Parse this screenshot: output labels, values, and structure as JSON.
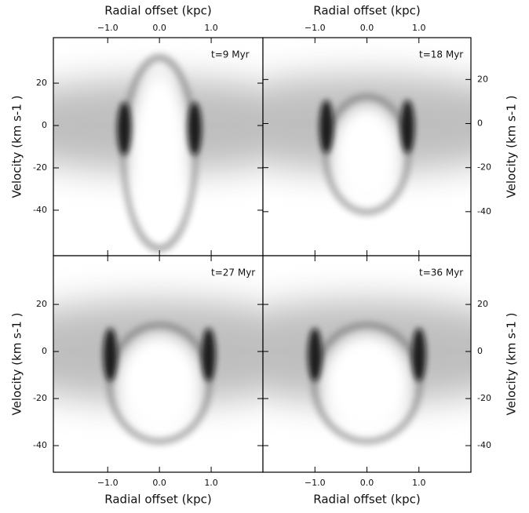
{
  "chart_data": [
    {
      "type": "image",
      "title": "t=9 Myr",
      "xlabel": "Radial offset (kpc)",
      "ylabel": "Velocity (km s-1 )",
      "xlim": [
        -2.05,
        2.0
      ],
      "ylim": [
        -61.5,
        41.5
      ],
      "xticks": [
        {
          "value": -1,
          "label": "−1.0"
        },
        {
          "value": 0,
          "label": "0.0"
        },
        {
          "value": 1,
          "label": "1.0"
        }
      ],
      "yticks": [
        20,
        0,
        -20,
        -40
      ],
      "xaxis_position": "top",
      "yaxis_position": "left"
    },
    {
      "type": "image",
      "title": "t=18 Myr",
      "xlabel": "Radial offset (kpc)",
      "ylabel": "Velocity (km s-1 )",
      "xlim": [
        -2.0,
        2.0
      ],
      "ylim": [
        -60,
        39
      ],
      "xticks": [
        {
          "value": -1,
          "label": "−1.0"
        },
        {
          "value": 0,
          "label": "0.0"
        },
        {
          "value": 1,
          "label": "1.0"
        }
      ],
      "yticks": [
        20,
        0,
        -20,
        -40
      ],
      "xaxis_position": "top",
      "yaxis_position": "right"
    },
    {
      "type": "image",
      "title": "t=27 Myr",
      "xlabel": "Radial offset (kpc)",
      "ylabel": "Velocity (km s-1 )",
      "xlim": [
        -2.05,
        2.0
      ],
      "ylim": [
        -51.3,
        40.7
      ],
      "xticks": [
        {
          "value": -1,
          "label": "−1.0"
        },
        {
          "value": 0,
          "label": "0.0"
        },
        {
          "value": 1,
          "label": "1.0"
        }
      ],
      "yticks": [
        20,
        0,
        -20,
        -40
      ],
      "xaxis_position": "bottom",
      "yaxis_position": "left"
    },
    {
      "type": "image",
      "title": "t=36 Myr",
      "xlabel": "Radial offset (kpc)",
      "ylabel": "Velocity (km s-1 )",
      "xlim": [
        -2.0,
        2.0
      ],
      "ylim": [
        -51.3,
        40.7
      ],
      "xticks": [
        {
          "value": -1,
          "label": "−1.0"
        },
        {
          "value": 0,
          "label": "0.0"
        },
        {
          "value": 1,
          "label": "1.0"
        }
      ],
      "yticks": [
        20,
        0,
        -20,
        -40
      ],
      "xaxis_position": "bottom",
      "yaxis_position": "right"
    }
  ]
}
